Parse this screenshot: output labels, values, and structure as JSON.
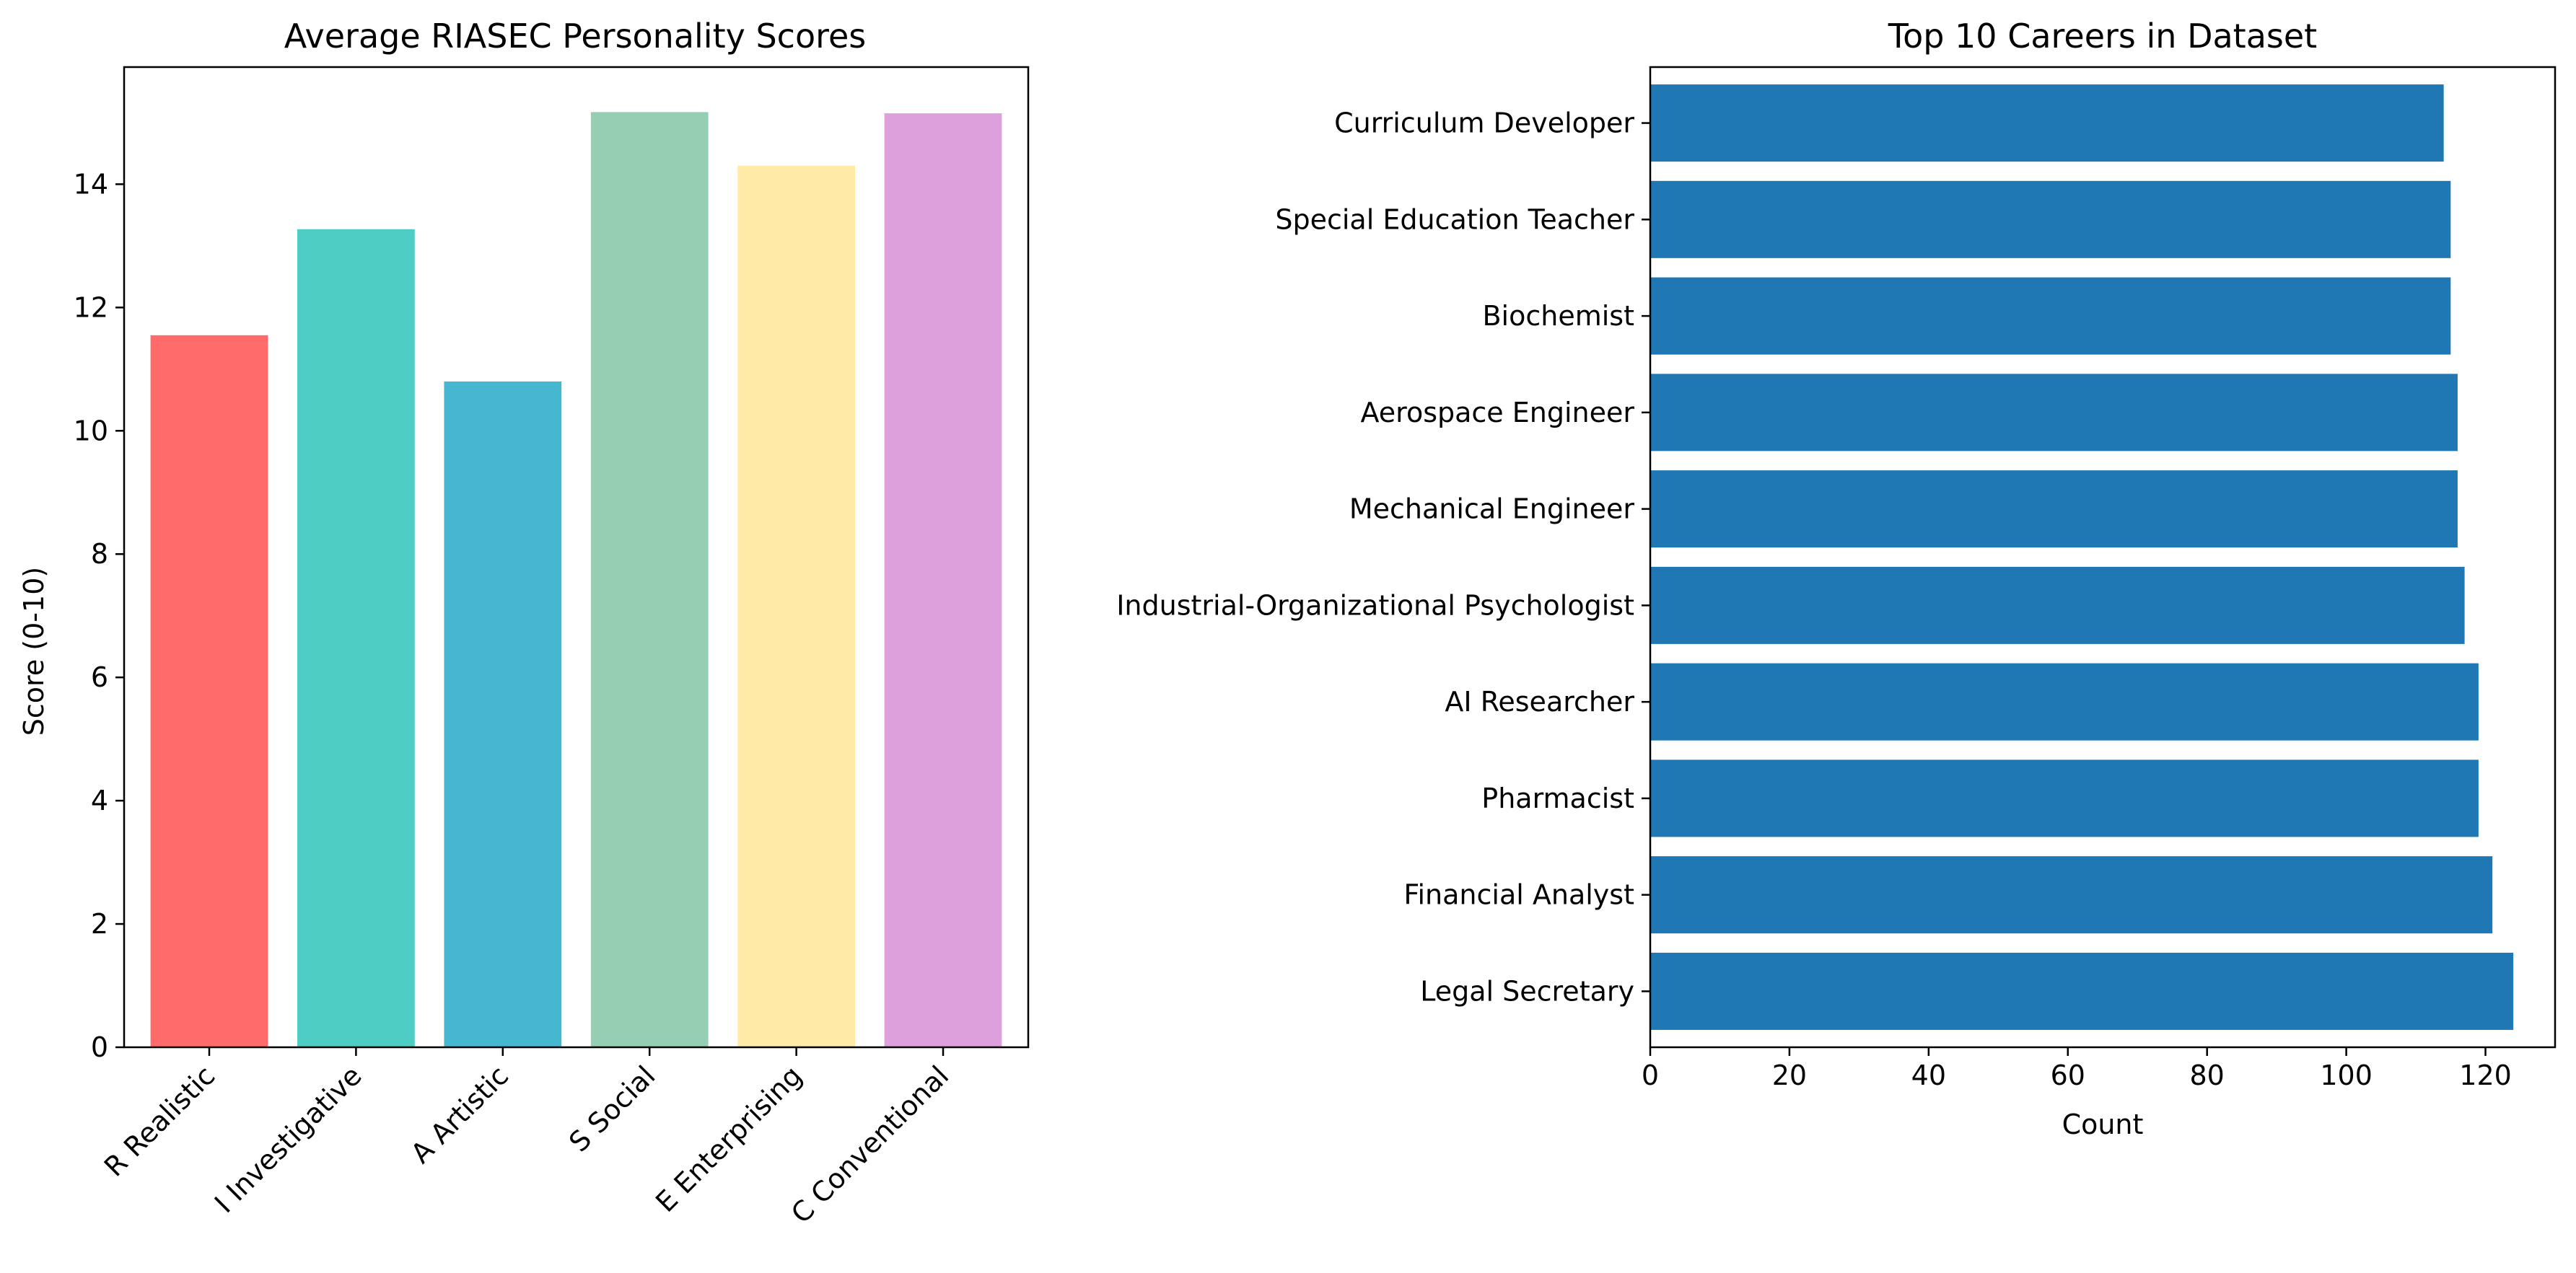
{
  "chart_data": [
    {
      "type": "bar",
      "title": "Average RIASEC Personality Scores",
      "xlabel": "",
      "ylabel": "Score (0-10)",
      "categories": [
        "R Realistic",
        "I Investigative",
        "A Artistic",
        "S Social",
        "E Enterprising",
        "C Conventional"
      ],
      "values": [
        11.55,
        13.27,
        10.8,
        15.17,
        14.3,
        15.15
      ],
      "colors": [
        "#ff6b6b",
        "#4ecdc4",
        "#45b7d1",
        "#96ceb4",
        "#ffeaa7",
        "#dda0dd"
      ],
      "ylim": [
        0,
        15.9
      ],
      "yticks": [
        0,
        2,
        4,
        6,
        8,
        10,
        12,
        14
      ],
      "grid": false
    },
    {
      "type": "bar",
      "orientation": "horizontal",
      "title": "Top 10 Careers in Dataset",
      "xlabel": "Count",
      "ylabel": "",
      "categories": [
        "Legal Secretary",
        "Financial Analyst",
        "Pharmacist",
        "AI Researcher",
        "Industrial-Organizational Psychologist",
        "Mechanical Engineer",
        "Aerospace Engineer",
        "Biochemist",
        "Special Education Teacher",
        "Curriculum Developer"
      ],
      "values": [
        124,
        121,
        119,
        119,
        117,
        116,
        116,
        115,
        115,
        114
      ],
      "color": "#1f77b4",
      "xlim": [
        0,
        130
      ],
      "xticks": [
        0,
        20,
        40,
        60,
        80,
        100,
        120
      ],
      "grid": false
    }
  ]
}
